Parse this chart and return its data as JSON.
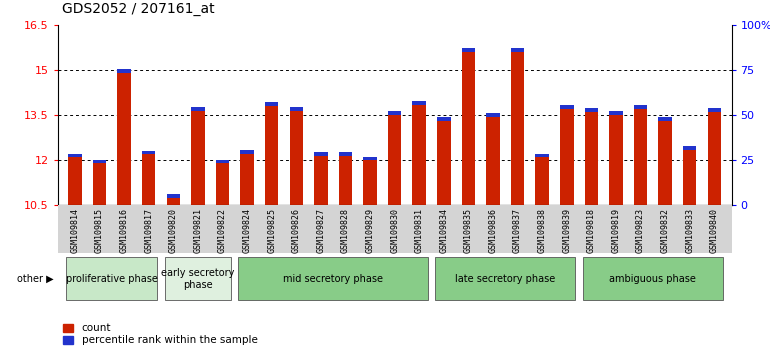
{
  "title": "GDS2052 / 207161_at",
  "samples": [
    "GSM109814",
    "GSM109815",
    "GSM109816",
    "GSM109817",
    "GSM109820",
    "GSM109821",
    "GSM109822",
    "GSM109824",
    "GSM109825",
    "GSM109826",
    "GSM109827",
    "GSM109828",
    "GSM109829",
    "GSM109830",
    "GSM109831",
    "GSM109834",
    "GSM109835",
    "GSM109836",
    "GSM109837",
    "GSM109838",
    "GSM109839",
    "GSM109818",
    "GSM109819",
    "GSM109823",
    "GSM109832",
    "GSM109833",
    "GSM109840"
  ],
  "count_values": [
    12.1,
    11.9,
    14.9,
    12.2,
    10.75,
    13.65,
    11.9,
    12.2,
    13.8,
    13.65,
    12.15,
    12.15,
    12.0,
    13.5,
    13.85,
    13.3,
    15.6,
    13.45,
    15.6,
    12.1,
    13.7,
    13.6,
    13.5,
    13.7,
    13.3,
    12.35,
    13.6
  ],
  "percentile_values": [
    0.12,
    0.12,
    0.13,
    0.12,
    0.12,
    0.12,
    0.12,
    0.13,
    0.13,
    0.12,
    0.12,
    0.12,
    0.12,
    0.13,
    0.12,
    0.12,
    0.13,
    0.12,
    0.13,
    0.12,
    0.12,
    0.12,
    0.12,
    0.12,
    0.12,
    0.12,
    0.12
  ],
  "baseline": 10.5,
  "ylim_left": [
    10.5,
    16.5
  ],
  "ylim_right": [
    0,
    100
  ],
  "yticks_left": [
    10.5,
    12.0,
    13.5,
    15.0,
    16.5
  ],
  "ytick_labels_left": [
    "10.5",
    "12",
    "13.5",
    "15",
    "16.5"
  ],
  "yticks_right": [
    0,
    25,
    50,
    75,
    100
  ],
  "ytick_labels_right": [
    "0",
    "25",
    "50",
    "75",
    "100%"
  ],
  "bar_color_count": "#cc2200",
  "bar_color_percentile": "#2233cc",
  "legend_count_label": "count",
  "legend_percentile_label": "percentile rank within the sample",
  "other_label": "other",
  "tick_bg": "#d4d4d4",
  "phase_boundaries": [
    {
      "label": "proliferative phase",
      "start": 0,
      "end": 3,
      "color": "#c8e8c8"
    },
    {
      "label": "early secretory\nphase",
      "start": 4,
      "end": 6,
      "color": "#dff0df"
    },
    {
      "label": "mid secretory phase",
      "start": 7,
      "end": 14,
      "color": "#88cc88"
    },
    {
      "label": "late secretory phase",
      "start": 15,
      "end": 20,
      "color": "#88cc88"
    },
    {
      "label": "ambiguous phase",
      "start": 21,
      "end": 26,
      "color": "#88cc88"
    }
  ]
}
